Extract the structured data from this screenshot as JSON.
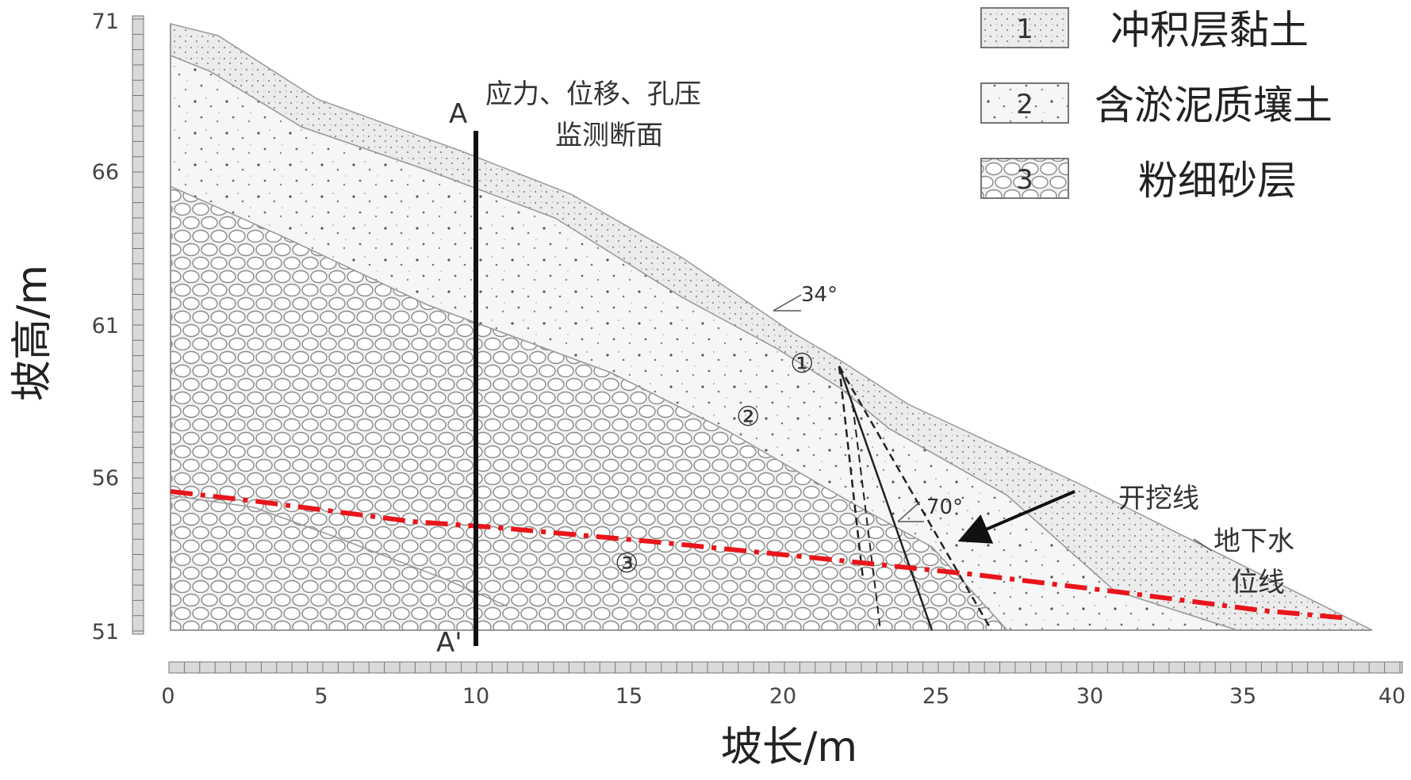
{
  "axes": {
    "y_label": "坡高/m",
    "x_label": "坡长/m",
    "y_ticks": [
      "71",
      "66",
      "61",
      "56",
      "51"
    ],
    "x_ticks": [
      "0",
      "5",
      "10",
      "15",
      "20",
      "25",
      "30",
      "35",
      "40"
    ]
  },
  "legend": [
    {
      "mark": "1",
      "label": "冲积层黏土"
    },
    {
      "mark": "2",
      "label": "含淤泥质壤土"
    },
    {
      "mark": "3",
      "label": "粉细砂层"
    }
  ],
  "annotations": {
    "section_title_line1": "应力、位移、孔压",
    "section_title_line2": "监测断面",
    "section_top": "A",
    "section_bottom": "A'",
    "angle_top": "34°",
    "angle_bottom": "70°",
    "excavation_line": "开挖线",
    "groundwater_line1": "地下水",
    "groundwater_line2": "位线",
    "layer1_mark": "①",
    "layer2_mark": "②",
    "layer3_mark": "③"
  },
  "colors": {
    "groundwater": "#e8151b",
    "outline": "#999999",
    "section_line": "#111111"
  }
}
